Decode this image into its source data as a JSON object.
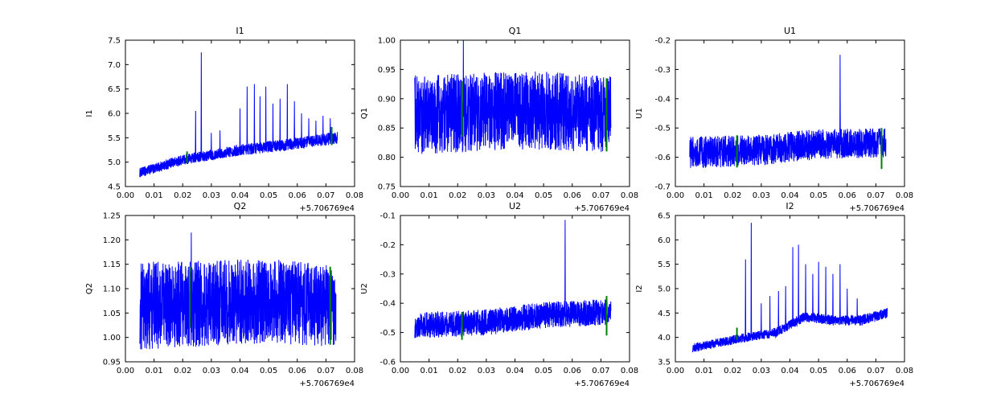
{
  "figure": {
    "background": "#ffffff",
    "line_color": "#0000ff",
    "marker_color": "#008000",
    "axis_color": "#000000"
  },
  "chart_data": {
    "type": "line",
    "layout": "2x3 grid of noisy time-series subplots",
    "x_offset_label": "+5.706769e4",
    "xlim": [
      0.0,
      0.08
    ],
    "xtick_values": [
      0.0,
      0.01,
      0.02,
      0.03,
      0.04,
      0.05,
      0.06,
      0.07,
      0.08
    ],
    "xtick_labels": [
      "0.00",
      "0.01",
      "0.02",
      "0.03",
      "0.04",
      "0.05",
      "0.06",
      "0.07",
      "0.08"
    ],
    "plots": [
      {
        "title": "I1",
        "ylabel": "I1",
        "ylim": [
          4.5,
          7.5
        ],
        "ytick_values": [
          4.5,
          5.0,
          5.5,
          6.0,
          6.5,
          7.0,
          7.5
        ],
        "ytick_labels": [
          "4.5",
          "5.0",
          "5.5",
          "6.0",
          "6.5",
          "7.0",
          "7.5"
        ],
        "x_range": [
          0.005,
          0.074
        ],
        "center": [
          [
            0.005,
            4.78
          ],
          [
            0.02,
            5.05
          ],
          [
            0.04,
            5.25
          ],
          [
            0.06,
            5.38
          ],
          [
            0.074,
            5.5
          ]
        ],
        "halfwidth": [
          [
            0.005,
            0.1
          ],
          [
            0.074,
            0.13
          ]
        ],
        "spikes": [
          [
            0.0245,
            6.05
          ],
          [
            0.0265,
            7.25
          ],
          [
            0.03,
            5.6
          ],
          [
            0.033,
            5.65
          ],
          [
            0.04,
            6.1
          ],
          [
            0.0425,
            6.55
          ],
          [
            0.045,
            6.6
          ],
          [
            0.047,
            6.35
          ],
          [
            0.049,
            6.55
          ],
          [
            0.0515,
            6.2
          ],
          [
            0.054,
            6.3
          ],
          [
            0.0565,
            6.6
          ],
          [
            0.059,
            6.25
          ],
          [
            0.0615,
            6.0
          ],
          [
            0.064,
            5.9
          ],
          [
            0.0665,
            5.85
          ],
          [
            0.069,
            5.95
          ],
          [
            0.0715,
            5.9
          ]
        ],
        "green_markers": [
          [
            0.0215,
            4.98,
            5.22
          ],
          [
            0.072,
            5.35,
            5.72
          ]
        ]
      },
      {
        "title": "Q1",
        "ylabel": "Q1",
        "ylim": [
          0.75,
          1.0
        ],
        "ytick_values": [
          0.75,
          0.8,
          0.85,
          0.9,
          0.95,
          1.0
        ],
        "ytick_labels": [
          "0.75",
          "0.80",
          "0.85",
          "0.90",
          "0.95",
          "1.00"
        ],
        "x_range": [
          0.005,
          0.0735
        ],
        "center": [
          [
            0.005,
            0.872
          ],
          [
            0.03,
            0.878
          ],
          [
            0.05,
            0.88
          ],
          [
            0.0735,
            0.872
          ]
        ],
        "halfwidth": [
          [
            0.005,
            0.068
          ],
          [
            0.0735,
            0.066
          ]
        ],
        "spikes": [
          [
            0.022,
            1.0
          ]
        ],
        "green_markers": [
          [
            0.0215,
            0.835,
            0.93
          ],
          [
            0.072,
            0.81,
            0.935
          ]
        ]
      },
      {
        "title": "U1",
        "ylabel": "U1",
        "ylim": [
          -0.7,
          -0.2
        ],
        "ytick_values": [
          -0.7,
          -0.6,
          -0.5,
          -0.4,
          -0.3,
          -0.2
        ],
        "ytick_labels": [
          "-0.7",
          "-0.6",
          "-0.5",
          "-0.4",
          "-0.3",
          "-0.2"
        ],
        "x_range": [
          0.005,
          0.0735
        ],
        "center": [
          [
            0.005,
            -0.585
          ],
          [
            0.03,
            -0.575
          ],
          [
            0.05,
            -0.555
          ],
          [
            0.0735,
            -0.55
          ]
        ],
        "halfwidth": [
          [
            0.005,
            0.055
          ],
          [
            0.0735,
            0.05
          ]
        ],
        "spikes": [
          [
            0.0575,
            -0.25
          ]
        ],
        "green_markers": [
          [
            0.0215,
            -0.635,
            -0.525
          ],
          [
            0.072,
            -0.64,
            -0.5
          ]
        ]
      },
      {
        "title": "Q2",
        "ylabel": "Q2",
        "ylim": [
          0.95,
          1.25
        ],
        "ytick_values": [
          0.95,
          1.0,
          1.05,
          1.1,
          1.15,
          1.2,
          1.25
        ],
        "ytick_labels": [
          "0.95",
          "1.00",
          "1.05",
          "1.10",
          "1.15",
          "1.20",
          "1.25"
        ],
        "x_range": [
          0.005,
          0.0735
        ],
        "center": [
          [
            0.005,
            1.065
          ],
          [
            0.03,
            1.07
          ],
          [
            0.05,
            1.075
          ],
          [
            0.0735,
            1.065
          ]
        ],
        "halfwidth": [
          [
            0.005,
            0.09
          ],
          [
            0.0735,
            0.085
          ]
        ],
        "spikes": [
          [
            0.023,
            1.215
          ]
        ],
        "green_markers": [
          [
            0.0225,
            1.02,
            1.145
          ],
          [
            0.0715,
            0.985,
            1.145
          ]
        ]
      },
      {
        "title": "U2",
        "ylabel": "U2",
        "ylim": [
          -0.6,
          -0.1
        ],
        "ytick_values": [
          -0.6,
          -0.5,
          -0.4,
          -0.3,
          -0.2,
          -0.1
        ],
        "ytick_labels": [
          "-0.6",
          "-0.5",
          "-0.4",
          "-0.3",
          "-0.2",
          "-0.1"
        ],
        "x_range": [
          0.005,
          0.0735
        ],
        "center": [
          [
            0.005,
            -0.475
          ],
          [
            0.03,
            -0.465
          ],
          [
            0.05,
            -0.44
          ],
          [
            0.0735,
            -0.43
          ]
        ],
        "halfwidth": [
          [
            0.005,
            0.045
          ],
          [
            0.0735,
            0.045
          ]
        ],
        "spikes": [
          [
            0.0575,
            -0.115
          ]
        ],
        "green_markers": [
          [
            0.0215,
            -0.525,
            -0.43
          ],
          [
            0.072,
            -0.51,
            -0.375
          ]
        ]
      },
      {
        "title": "I2",
        "ylabel": "I2",
        "ylim": [
          3.5,
          6.5
        ],
        "ytick_values": [
          3.5,
          4.0,
          4.5,
          5.0,
          5.5,
          6.0,
          6.5
        ],
        "ytick_labels": [
          "3.5",
          "4.0",
          "4.5",
          "5.0",
          "5.5",
          "6.0",
          "6.5"
        ],
        "x_range": [
          0.006,
          0.074
        ],
        "center": [
          [
            0.006,
            3.78
          ],
          [
            0.02,
            3.95
          ],
          [
            0.035,
            4.1
          ],
          [
            0.045,
            4.42
          ],
          [
            0.055,
            4.35
          ],
          [
            0.065,
            4.35
          ],
          [
            0.074,
            4.5
          ]
        ],
        "halfwidth": [
          [
            0.006,
            0.09
          ],
          [
            0.074,
            0.11
          ]
        ],
        "spikes": [
          [
            0.0245,
            5.6
          ],
          [
            0.0265,
            6.35
          ],
          [
            0.03,
            4.7
          ],
          [
            0.033,
            4.85
          ],
          [
            0.036,
            4.95
          ],
          [
            0.0385,
            5.05
          ],
          [
            0.041,
            5.85
          ],
          [
            0.043,
            5.9
          ],
          [
            0.0455,
            5.5
          ],
          [
            0.048,
            5.3
          ],
          [
            0.05,
            5.55
          ],
          [
            0.0525,
            5.45
          ],
          [
            0.055,
            5.3
          ],
          [
            0.0575,
            5.5
          ],
          [
            0.06,
            5.0
          ],
          [
            0.0635,
            4.8
          ]
        ],
        "green_markers": [
          [
            0.0215,
            3.95,
            4.2
          ]
        ]
      }
    ]
  }
}
